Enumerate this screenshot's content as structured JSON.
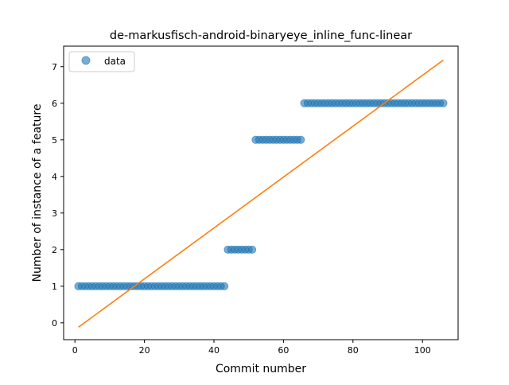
{
  "chart_data": {
    "type": "scatter",
    "title": "de-markusfisch-android-binaryeye_inline_func-linear",
    "xlabel": "Commit number",
    "ylabel": "Number of instance of a feature",
    "xlim": [
      -3.25,
      110.25
    ],
    "ylim": [
      -0.46,
      7.56
    ],
    "xticks": [
      0,
      20,
      40,
      60,
      80,
      100
    ],
    "yticks": [
      0,
      1,
      2,
      3,
      4,
      5,
      6,
      7
    ],
    "legend": {
      "position": "top-left",
      "entries": [
        "data"
      ]
    },
    "series": [
      {
        "name": "data",
        "kind": "scatter",
        "color": "#1f77b4",
        "segments": [
          {
            "x_start": 1,
            "x_end": 43,
            "y": 1
          },
          {
            "x_start": 44,
            "x_end": 51,
            "y": 2
          },
          {
            "x_start": 52,
            "x_end": 65,
            "y": 5
          },
          {
            "x_start": 66,
            "x_end": 106,
            "y": 6
          }
        ]
      },
      {
        "kind": "line",
        "color": "#ff7f0e",
        "x": [
          1,
          106
        ],
        "y": [
          -0.12,
          7.18
        ]
      }
    ]
  }
}
